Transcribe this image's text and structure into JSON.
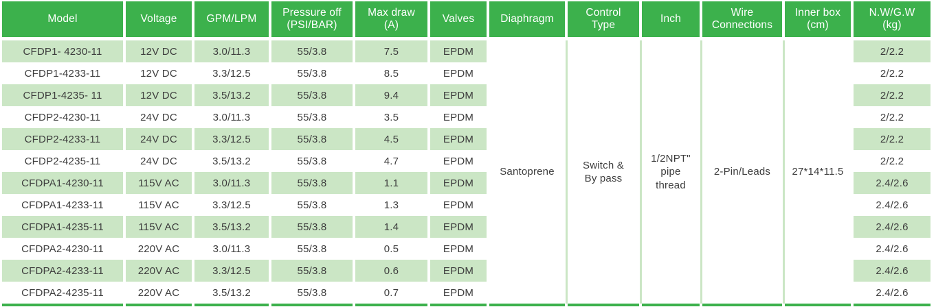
{
  "chart_data": {
    "type": "table",
    "columns": [
      "Model",
      "Voltage",
      "GPM/LPM",
      "Pressure off\n(PSI/BAR)",
      "Max draw\n(A)",
      "Valves",
      "Diaphragm",
      "Control\nType",
      "Inch",
      "Wire\nConnections",
      "Inner box\n(cm)",
      "N.W/G.W\n(kg)"
    ],
    "rows": [
      {
        "model": "CFDP1- 4230-11",
        "voltage": "12V DC",
        "gpm_lpm": "3.0/11.3",
        "pressure_off": "55/3.8",
        "max_draw": "7.5",
        "valves": "EPDM",
        "nw_gw": "2/2.2"
      },
      {
        "model": "CFDP1-4233-11",
        "voltage": "12V DC",
        "gpm_lpm": "3.3/12.5",
        "pressure_off": "55/3.8",
        "max_draw": "8.5",
        "valves": "EPDM",
        "nw_gw": "2/2.2"
      },
      {
        "model": "CFDP1-4235- 11",
        "voltage": "12V DC",
        "gpm_lpm": "3.5/13.2",
        "pressure_off": "55/3.8",
        "max_draw": "9.4",
        "valves": "EPDM",
        "nw_gw": "2/2.2"
      },
      {
        "model": "CFDP2-4230-11",
        "voltage": "24V DC",
        "gpm_lpm": "3.0/11.3",
        "pressure_off": "55/3.8",
        "max_draw": "3.5",
        "valves": "EPDM",
        "nw_gw": "2/2.2"
      },
      {
        "model": "CFDP2-4233-11",
        "voltage": "24V DC",
        "gpm_lpm": "3.3/12.5",
        "pressure_off": "55/3.8",
        "max_draw": "4.5",
        "valves": "EPDM",
        "nw_gw": "2/2.2"
      },
      {
        "model": "CFDP2-4235-11",
        "voltage": "24V DC",
        "gpm_lpm": "3.5/13.2",
        "pressure_off": "55/3.8",
        "max_draw": "4.7",
        "valves": "EPDM",
        "nw_gw": "2/2.2"
      },
      {
        "model": "CFDPA1-4230-11",
        "voltage": "115V AC",
        "gpm_lpm": "3.0/11.3",
        "pressure_off": "55/3.8",
        "max_draw": "1.1",
        "valves": "EPDM",
        "nw_gw": "2.4/2.6"
      },
      {
        "model": "CFDPA1-4233-11",
        "voltage": "115V AC",
        "gpm_lpm": "3.3/12.5",
        "pressure_off": "55/3.8",
        "max_draw": "1.3",
        "valves": "EPDM",
        "nw_gw": "2.4/2.6"
      },
      {
        "model": "CFDPA1-4235-11",
        "voltage": "115V AC",
        "gpm_lpm": "3.5/13.2",
        "pressure_off": "55/3.8",
        "max_draw": "1.4",
        "valves": "EPDM",
        "nw_gw": "2.4/2.6"
      },
      {
        "model": "CFDPA2-4230-11",
        "voltage": "220V AC",
        "gpm_lpm": "3.0/11.3",
        "pressure_off": "55/3.8",
        "max_draw": "0.5",
        "valves": "EPDM",
        "nw_gw": "2.4/2.6"
      },
      {
        "model": "CFDPA2-4233-11",
        "voltage": "220V AC",
        "gpm_lpm": "3.3/12.5",
        "pressure_off": "55/3.8",
        "max_draw": "0.6",
        "valves": "EPDM",
        "nw_gw": "2.4/2.6"
      },
      {
        "model": "CFDPA2-4235-11",
        "voltage": "220V AC",
        "gpm_lpm": "3.5/13.2",
        "pressure_off": "55/3.8",
        "max_draw": "0.7",
        "valves": "EPDM",
        "nw_gw": "2.4/2.6"
      }
    ],
    "merged_cells": {
      "diaphragm": "Santoprene",
      "control_type": "Switch &\nBy pass",
      "inch": "1/2NPT\"\npipe\nthread",
      "wire_connections": "2-Pin/Leads",
      "inner_box_cm": "27*14*11.5"
    },
    "layout_hints": {
      "striped_rows": "odd rows light green",
      "merged_region": "Diaphragm through Inner box span all 12 rows"
    }
  },
  "colors": {
    "header_bg": "#3CB14C",
    "header_text": "#FFFFFF",
    "stripe_bg": "#CBE6C5",
    "separator_line": "#CBE6C5",
    "bottom_border": "#3CB14C",
    "body_text": "#3D3D3D",
    "page_bg": "#FFFFFF"
  }
}
